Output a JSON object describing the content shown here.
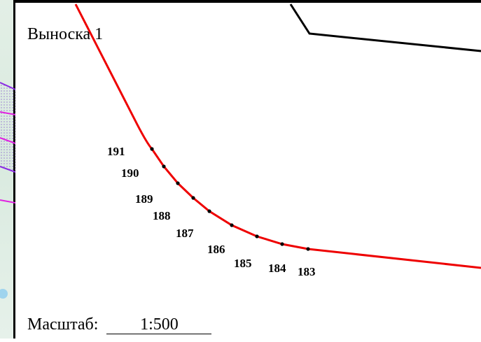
{
  "title": "Выноска 1",
  "scale": {
    "label": "Масштаб:",
    "value": "1:500"
  },
  "colors": {
    "parcel_boundary": "#ee0000",
    "existing_boundary": "#000000",
    "underlay_purple": "#8a2be2",
    "underlay_magenta": "#e020e0"
  },
  "points": [
    {
      "label": "191"
    },
    {
      "label": "190"
    },
    {
      "label": "189"
    },
    {
      "label": "188"
    },
    {
      "label": "187"
    },
    {
      "label": "186"
    },
    {
      "label": "185"
    },
    {
      "label": "184"
    },
    {
      "label": "183"
    }
  ]
}
